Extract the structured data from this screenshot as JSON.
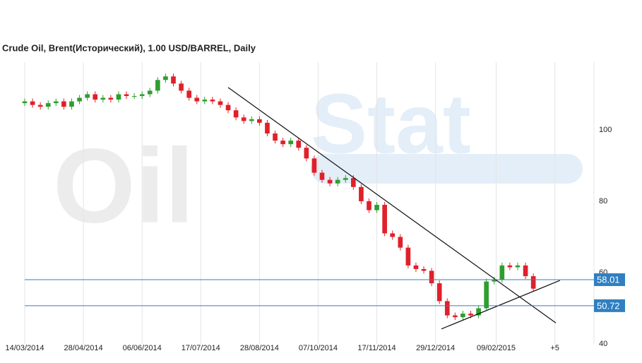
{
  "chart_data": {
    "type": "candlestick",
    "title": "Crude Oil, Brent(Исторический), 1.00 USD/BARREL, Daily",
    "watermark": [
      "Oil",
      "Stat"
    ],
    "up_color": "#2e9e2e",
    "down_color": "#e0202a",
    "level_color": "#2f7fc1",
    "xlim": [
      0,
      291
    ],
    "ylim": [
      40,
      119
    ],
    "yticks": [
      40,
      60,
      80,
      100
    ],
    "xticks": [
      {
        "value": 0,
        "label": "14/03/2014"
      },
      {
        "value": 30,
        "label": "28/04/2014"
      },
      {
        "value": 60,
        "label": "06/06/2014"
      },
      {
        "value": 90,
        "label": "17/07/2014"
      },
      {
        "value": 120,
        "label": "28/08/2014"
      },
      {
        "value": 150,
        "label": "07/10/2014"
      },
      {
        "value": 180,
        "label": "17/11/2014"
      },
      {
        "value": 210,
        "label": "29/12/2014"
      },
      {
        "value": 241,
        "label": "09/02/2015"
      },
      {
        "value": 271,
        "label": "+5"
      }
    ],
    "grid": true,
    "levels": [
      58.01,
      50.72
    ],
    "trendlines": [
      {
        "x": [
          104,
          271.5
        ],
        "y": [
          111.9,
          45.9
        ]
      },
      {
        "x": [
          213,
          273.6
        ],
        "y": [
          44.2,
          57.8
        ]
      }
    ],
    "x": [
      0,
      4,
      8,
      12,
      16,
      20,
      24,
      28,
      32,
      36,
      40,
      44,
      48,
      52,
      56,
      60,
      64,
      68,
      72,
      76,
      80,
      84,
      88,
      92,
      96,
      100,
      104,
      108,
      112,
      116,
      120,
      124,
      128,
      132,
      136,
      140,
      144,
      148,
      152,
      156,
      160,
      164,
      168,
      172,
      176,
      180,
      184,
      188,
      192,
      196,
      200,
      204,
      208,
      212,
      216,
      220,
      224,
      228,
      232,
      236,
      240,
      244,
      248,
      252,
      256,
      260
    ],
    "open": [
      107.5,
      108,
      107,
      106.5,
      107.5,
      108,
      106.5,
      108,
      109,
      110,
      108.5,
      109,
      108.5,
      110,
      109.5,
      109.5,
      110,
      111,
      114,
      115,
      113,
      111,
      109,
      108,
      108.5,
      108,
      107,
      105.5,
      103.5,
      102.5,
      103,
      102,
      99,
      97,
      96,
      97,
      95,
      92,
      88,
      86,
      85,
      86,
      86.5,
      84,
      80,
      77.5,
      79,
      71,
      70,
      67,
      62,
      61,
      60.5,
      57,
      52,
      48,
      47.5,
      48.5,
      48,
      50,
      57.5,
      58,
      62,
      61.5,
      62,
      59
    ],
    "high": [
      108.8,
      108.8,
      107.8,
      108.3,
      108.8,
      108.8,
      108.8,
      109.8,
      110.8,
      110.8,
      109.8,
      109.8,
      110.8,
      110.8,
      110.3,
      110.8,
      111.8,
      114.8,
      115.8,
      115.8,
      113.8,
      111.8,
      109.8,
      109.3,
      109.3,
      108.8,
      107.8,
      106.3,
      104.3,
      103.8,
      103.8,
      102.8,
      99.8,
      97.8,
      97.8,
      97.8,
      95.8,
      92.8,
      88.8,
      86.8,
      86.8,
      87.3,
      87.3,
      84.8,
      80.8,
      79.8,
      79.8,
      71.8,
      70.8,
      67.8,
      62.8,
      61.8,
      61.3,
      57.8,
      52.8,
      48.8,
      49.3,
      49.3,
      50.8,
      58.3,
      58.8,
      62.8,
      62.8,
      62.8,
      62.8,
      59.8
    ],
    "low": [
      106.7,
      106.2,
      105.7,
      105.7,
      106.7,
      105.7,
      105.7,
      107.2,
      108.2,
      107.7,
      107.7,
      107.7,
      107.7,
      108.7,
      108.7,
      108.7,
      109.2,
      110.2,
      113.2,
      112.2,
      110.2,
      108.2,
      107.2,
      107.2,
      107.2,
      106.2,
      104.7,
      102.7,
      101.7,
      101.7,
      101.2,
      98.2,
      96.2,
      95.2,
      95.2,
      94.2,
      91.2,
      87.2,
      85.2,
      84.2,
      84.2,
      85.2,
      83.2,
      79.2,
      76.7,
      76.7,
      70.2,
      69.2,
      66.2,
      61.2,
      60.2,
      59.7,
      56.2,
      51.2,
      47.2,
      46.7,
      46.7,
      47.2,
      47.2,
      49.2,
      56.7,
      57.2,
      60.7,
      60.7,
      58.2,
      54.7
    ],
    "close": [
      108,
      107,
      106.5,
      107.5,
      108,
      106.5,
      108,
      109,
      110,
      108.5,
      109,
      108.5,
      110,
      109.5,
      109.5,
      110,
      111,
      114,
      115,
      113,
      111,
      109,
      108,
      108.5,
      108,
      107,
      105.5,
      103.5,
      102.5,
      103,
      102,
      99,
      97,
      96,
      97,
      95,
      92,
      88,
      86,
      85,
      86,
      86.5,
      84,
      80,
      77.5,
      79,
      71,
      70,
      67,
      62,
      61,
      60.5,
      57,
      52,
      48,
      47.5,
      48.5,
      48,
      50,
      57.5,
      58,
      62,
      61.5,
      62,
      59,
      55.5
    ]
  }
}
